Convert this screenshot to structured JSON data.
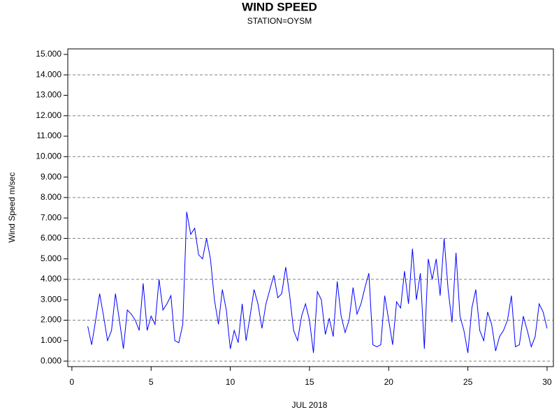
{
  "chart_data": {
    "type": "line",
    "title": "WIND SPEED",
    "subtitle": "STATION=OYSM",
    "xlabel": "JUL 2018",
    "ylabel": "Wind Speed m/sec",
    "color": "#0000ff",
    "xlim": [
      -0.26,
      30.4
    ],
    "xticks": [
      0,
      5,
      10,
      15,
      20,
      25,
      30
    ],
    "ylim": [
      -0.27,
      15.27
    ],
    "yticks": [
      {
        "value": 0,
        "label": "0.000"
      },
      {
        "value": 1,
        "label": "1.000"
      },
      {
        "value": 2,
        "label": "2.000"
      },
      {
        "value": 3,
        "label": "3.000"
      },
      {
        "value": 4,
        "label": "4.000"
      },
      {
        "value": 5,
        "label": "5.000"
      },
      {
        "value": 6,
        "label": "6.000"
      },
      {
        "value": 7,
        "label": "7.000"
      },
      {
        "value": 8,
        "label": "8.000"
      },
      {
        "value": 9,
        "label": "9.000"
      },
      {
        "value": 10,
        "label": "10.000"
      },
      {
        "value": 11,
        "label": "11.000"
      },
      {
        "value": 12,
        "label": "12.000"
      },
      {
        "value": 13,
        "label": "13.000"
      },
      {
        "value": 14,
        "label": "14.000"
      },
      {
        "value": 15,
        "label": "15.000"
      }
    ],
    "ygrid": [
      0,
      2,
      4,
      6,
      8,
      10,
      12,
      14
    ],
    "x": [
      1.0,
      1.25,
      1.5,
      1.75,
      2.0,
      2.25,
      2.5,
      2.75,
      3.0,
      3.25,
      3.5,
      3.75,
      4.0,
      4.25,
      4.5,
      4.75,
      5.0,
      5.25,
      5.5,
      5.75,
      6.0,
      6.25,
      6.5,
      6.75,
      7.0,
      7.25,
      7.5,
      7.75,
      8.0,
      8.25,
      8.5,
      8.75,
      9.0,
      9.25,
      9.5,
      9.75,
      10.0,
      10.25,
      10.5,
      10.75,
      11.0,
      11.25,
      11.5,
      11.75,
      12.0,
      12.25,
      12.5,
      12.75,
      13.0,
      13.25,
      13.5,
      13.75,
      14.0,
      14.25,
      14.5,
      14.75,
      15.0,
      15.25,
      15.5,
      15.75,
      16.0,
      16.25,
      16.5,
      16.75,
      17.0,
      17.25,
      17.5,
      17.75,
      18.0,
      18.25,
      18.5,
      18.75,
      19.0,
      19.25,
      19.5,
      19.75,
      20.0,
      20.25,
      20.5,
      20.75,
      21.0,
      21.25,
      21.5,
      21.75,
      22.0,
      22.25,
      22.5,
      22.75,
      23.0,
      23.25,
      23.5,
      23.75,
      24.0,
      24.25,
      24.5,
      24.75,
      25.0,
      25.25,
      25.5,
      25.75,
      26.0,
      26.25,
      26.5,
      26.75,
      27.0,
      27.25,
      27.5,
      27.75,
      28.0,
      28.25,
      28.5,
      28.75,
      29.0,
      29.25,
      29.5,
      29.75,
      30.0
    ],
    "values": [
      1.7,
      0.8,
      2.0,
      3.3,
      2.2,
      1.0,
      1.5,
      3.3,
      2.0,
      0.6,
      2.5,
      2.3,
      2.0,
      1.5,
      3.8,
      1.5,
      2.2,
      1.8,
      4.0,
      2.5,
      2.8,
      3.2,
      1.0,
      0.9,
      1.8,
      7.3,
      6.2,
      6.5,
      5.2,
      5.0,
      6.0,
      5.0,
      3.0,
      1.8,
      3.5,
      2.5,
      0.6,
      1.5,
      0.9,
      2.8,
      1.0,
      2.2,
      3.5,
      2.8,
      1.6,
      2.8,
      3.5,
      4.2,
      3.1,
      3.3,
      4.6,
      3.2,
      1.5,
      1.0,
      2.2,
      2.8,
      2.0,
      0.4,
      3.4,
      3.0,
      1.3,
      2.1,
      1.2,
      3.9,
      2.2,
      1.4,
      2.0,
      3.6,
      2.3,
      2.8,
      3.6,
      4.3,
      0.8,
      0.7,
      0.8,
      3.2,
      2.0,
      0.8,
      2.9,
      2.6,
      4.4,
      2.8,
      5.5,
      3.0,
      4.3,
      0.6,
      5.0,
      4.0,
      5.0,
      3.2,
      6.0,
      3.5,
      1.9,
      5.3,
      2.2,
      1.5,
      0.4,
      2.6,
      3.5,
      1.5,
      1.0,
      2.4,
      1.8,
      0.5,
      1.2,
      1.5,
      2.0,
      3.2,
      0.7,
      0.8,
      2.2,
      1.5,
      0.7,
      1.2,
      2.8,
      2.4,
      1.6
    ]
  }
}
